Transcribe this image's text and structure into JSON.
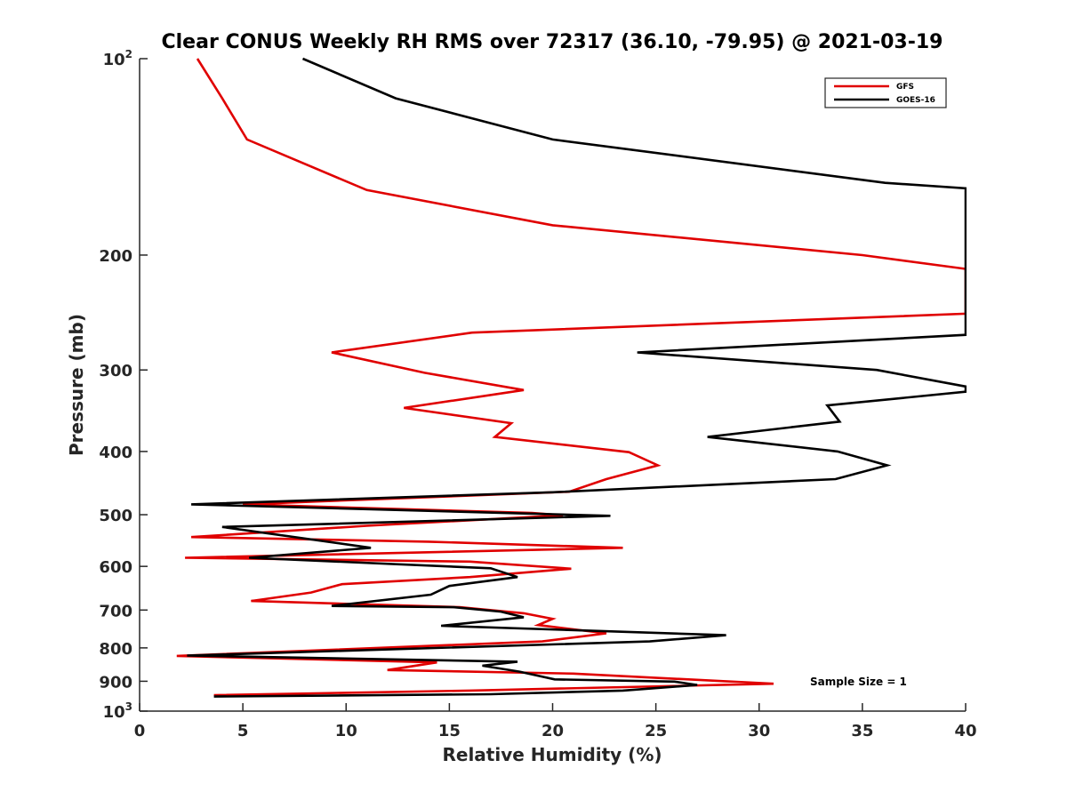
{
  "chart_data": {
    "type": "line",
    "title": "Clear CONUS Weekly RH RMS over 72317 (36.10, -79.95) @ 2021-03-19",
    "xlabel": "Relative Humidity (%)",
    "ylabel": "Pressure (mb)",
    "xlim": [
      0,
      40
    ],
    "ylim": [
      100,
      1000
    ],
    "yscale": "log",
    "y_reversed": true,
    "grid": false,
    "legend_position": "top-right",
    "x_ticks": [
      0,
      5,
      10,
      15,
      20,
      25,
      30,
      35,
      40
    ],
    "x_tick_labels": [
      "0",
      "5",
      "10",
      "15",
      "20",
      "25",
      "30",
      "35",
      "40"
    ],
    "y_ticks": [
      100,
      200,
      300,
      400,
      500,
      600,
      700,
      800,
      900,
      1000
    ],
    "y_tick_labels": [
      {
        "base": "10",
        "sup": "2"
      },
      {
        "base": "200",
        "sup": ""
      },
      {
        "base": "300",
        "sup": ""
      },
      {
        "base": "400",
        "sup": ""
      },
      {
        "base": "500",
        "sup": ""
      },
      {
        "base": "600",
        "sup": ""
      },
      {
        "base": "700",
        "sup": ""
      },
      {
        "base": "800",
        "sup": ""
      },
      {
        "base": "900",
        "sup": ""
      },
      {
        "base": "10",
        "sup": "3"
      }
    ],
    "annotation": "Sample Size = 1",
    "series": [
      {
        "name": "GFS",
        "color": "#e00000",
        "points": [
          [
            2.8,
            100
          ],
          [
            4.0,
            115
          ],
          [
            5.2,
            133
          ],
          [
            11.0,
            159
          ],
          [
            20.0,
            180
          ],
          [
            35.0,
            200
          ],
          [
            40.0,
            210
          ],
          [
            40.0,
            246
          ],
          [
            16.1,
            263
          ],
          [
            9.3,
            282
          ],
          [
            13.8,
            303
          ],
          [
            18.6,
            322
          ],
          [
            12.8,
            343
          ],
          [
            18.0,
            362
          ],
          [
            17.2,
            380
          ],
          [
            23.7,
            401
          ],
          [
            25.1,
            420
          ],
          [
            22.6,
            441
          ],
          [
            20.8,
            461
          ],
          [
            5.0,
            482
          ],
          [
            19.0,
            497
          ],
          [
            20.5,
            501
          ],
          [
            11.0,
            520
          ],
          [
            2.5,
            541
          ],
          [
            14.0,
            550
          ],
          [
            23.4,
            562
          ],
          [
            2.2,
            582
          ],
          [
            16.0,
            590
          ],
          [
            20.9,
            605
          ],
          [
            16.0,
            623
          ],
          [
            9.8,
            639
          ],
          [
            8.3,
            658
          ],
          [
            5.4,
            678
          ],
          [
            15.5,
            693
          ],
          [
            18.6,
            708
          ],
          [
            20.0,
            722
          ],
          [
            19.3,
            738
          ],
          [
            22.6,
            760
          ],
          [
            19.5,
            782
          ],
          [
            1.8,
            823
          ],
          [
            14.4,
            842
          ],
          [
            12.0,
            865
          ],
          [
            21.0,
            876
          ],
          [
            30.7,
            908
          ],
          [
            16.0,
            930
          ],
          [
            3.6,
            945
          ]
        ]
      },
      {
        "name": "GOES-16",
        "color": "#000000",
        "points": [
          [
            7.9,
            100
          ],
          [
            12.4,
            115
          ],
          [
            20.0,
            133
          ],
          [
            36.1,
            155
          ],
          [
            40.0,
            158
          ],
          [
            40.0,
            265
          ],
          [
            24.1,
            282
          ],
          [
            35.7,
            300
          ],
          [
            40.0,
            318
          ],
          [
            40.0,
            324
          ],
          [
            33.3,
            340
          ],
          [
            33.9,
            360
          ],
          [
            27.5,
            380
          ],
          [
            33.8,
            400
          ],
          [
            36.2,
            420
          ],
          [
            33.7,
            441
          ],
          [
            20.0,
            462
          ],
          [
            2.5,
            482
          ],
          [
            22.8,
            502
          ],
          [
            4.0,
            522
          ],
          [
            11.2,
            562
          ],
          [
            5.3,
            582
          ],
          [
            17.0,
            604
          ],
          [
            18.3,
            623
          ],
          [
            15.0,
            643
          ],
          [
            14.1,
            663
          ],
          [
            9.3,
            690
          ],
          [
            15.2,
            693
          ],
          [
            17.5,
            704
          ],
          [
            18.6,
            718
          ],
          [
            14.6,
            740
          ],
          [
            28.4,
            765
          ],
          [
            24.7,
            782
          ],
          [
            2.3,
            822
          ],
          [
            18.3,
            840
          ],
          [
            16.6,
            852
          ],
          [
            18.4,
            870
          ],
          [
            20.1,
            894
          ],
          [
            25.9,
            901
          ],
          [
            27.0,
            912
          ],
          [
            23.4,
            930
          ],
          [
            17.0,
            942
          ],
          [
            3.6,
            950
          ]
        ]
      }
    ]
  }
}
